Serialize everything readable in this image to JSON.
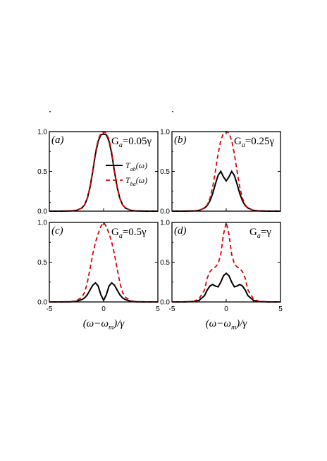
{
  "figure": {
    "xlabel": {
      "pre": "(ω−ω",
      "sub": "m",
      "post": ")/γ"
    },
    "legend": [
      {
        "pre": "T",
        "sub": "ab",
        "post": "(ω)",
        "style": "solid",
        "color": "#000000"
      },
      {
        "pre": "T",
        "sub": "ba",
        "post": "(ω)",
        "style": "dashed",
        "color": "#e00000"
      }
    ]
  },
  "chart_data": [
    {
      "type": "line",
      "panel_label": "(a)",
      "param": {
        "pre": "G",
        "sub": "a",
        "post": "=0.05γ"
      },
      "xlim": [
        -5,
        5
      ],
      "ylim": [
        0,
        1
      ],
      "xticks": [
        "-5",
        "0",
        "5"
      ],
      "yticks": [
        "0.0",
        "0.5",
        "1.0"
      ],
      "series": [
        {
          "name": "T_ab(ω)",
          "x": [
            -5,
            -4,
            -3,
            -2.5,
            -2,
            -1.75,
            -1.5,
            -1.25,
            -1,
            -0.75,
            -0.5,
            -0.25,
            0,
            0.25,
            0.5,
            0.75,
            1,
            1.25,
            1.5,
            1.75,
            2,
            2.5,
            3,
            4,
            5
          ],
          "y": [
            0,
            0,
            0.003,
            0.01,
            0.04,
            0.08,
            0.16,
            0.3,
            0.5,
            0.72,
            0.88,
            0.96,
            0.97,
            0.96,
            0.88,
            0.72,
            0.5,
            0.3,
            0.16,
            0.08,
            0.04,
            0.01,
            0.003,
            0,
            0
          ]
        },
        {
          "name": "T_ba(ω)",
          "x": [
            -5,
            -4,
            -3,
            -2.5,
            -2,
            -1.75,
            -1.5,
            -1.25,
            -1,
            -0.75,
            -0.5,
            -0.25,
            0,
            0.25,
            0.5,
            0.75,
            1,
            1.25,
            1.5,
            1.75,
            2,
            2.5,
            3,
            4,
            5
          ],
          "y": [
            0,
            0,
            0.003,
            0.01,
            0.04,
            0.08,
            0.16,
            0.31,
            0.51,
            0.74,
            0.9,
            0.98,
            1.0,
            0.98,
            0.9,
            0.74,
            0.51,
            0.31,
            0.16,
            0.08,
            0.04,
            0.01,
            0.003,
            0,
            0
          ]
        }
      ]
    },
    {
      "type": "line",
      "panel_label": "(b)",
      "param": {
        "pre": "G",
        "sub": "a",
        "post": "=0.25γ"
      },
      "xlim": [
        -5,
        5
      ],
      "ylim": [
        0,
        1
      ],
      "xticks": [
        "-5",
        "0",
        "5"
      ],
      "yticks": [
        "0.0",
        "0.5",
        "1.0"
      ],
      "series": [
        {
          "name": "T_ab(ω)",
          "x": [
            -5,
            -4,
            -3,
            -2.5,
            -2,
            -1.75,
            -1.5,
            -1.25,
            -1,
            -0.75,
            -0.5,
            -0.25,
            0,
            0.25,
            0.5,
            0.75,
            1,
            1.25,
            1.5,
            1.75,
            2,
            2.5,
            3,
            4,
            5
          ],
          "y": [
            0,
            0,
            0.003,
            0.01,
            0.04,
            0.07,
            0.13,
            0.22,
            0.34,
            0.45,
            0.5,
            0.43,
            0.38,
            0.43,
            0.5,
            0.45,
            0.34,
            0.22,
            0.13,
            0.07,
            0.04,
            0.01,
            0.003,
            0,
            0
          ]
        },
        {
          "name": "T_ba(ω)",
          "x": [
            -5,
            -4,
            -3,
            -2.5,
            -2,
            -1.75,
            -1.5,
            -1.25,
            -1,
            -0.75,
            -0.5,
            -0.25,
            0,
            0.25,
            0.5,
            0.75,
            1,
            1.25,
            1.5,
            1.75,
            2,
            2.5,
            3,
            4,
            5
          ],
          "y": [
            0,
            0,
            0.003,
            0.01,
            0.04,
            0.08,
            0.16,
            0.3,
            0.5,
            0.72,
            0.89,
            0.98,
            1.0,
            0.98,
            0.89,
            0.72,
            0.5,
            0.3,
            0.16,
            0.08,
            0.04,
            0.01,
            0.003,
            0,
            0
          ]
        }
      ]
    },
    {
      "type": "line",
      "panel_label": "(c)",
      "param": {
        "pre": "G",
        "sub": "a",
        "post": "=0.5γ"
      },
      "xlim": [
        -5,
        5
      ],
      "ylim": [
        0,
        1
      ],
      "xticks": [
        "-5",
        "0",
        "5"
      ],
      "yticks": [
        "0.0",
        "0.5",
        "1.0"
      ],
      "series": [
        {
          "name": "T_ab(ω)",
          "x": [
            -5,
            -4,
            -3,
            -2.5,
            -2,
            -1.75,
            -1.5,
            -1.25,
            -1,
            -0.75,
            -0.5,
            -0.25,
            0,
            0.25,
            0.5,
            0.75,
            1,
            1.25,
            1.5,
            1.75,
            2,
            2.5,
            3,
            4,
            5
          ],
          "y": [
            0,
            0,
            0.002,
            0.008,
            0.03,
            0.05,
            0.09,
            0.15,
            0.21,
            0.24,
            0.2,
            0.09,
            0.02,
            0.09,
            0.2,
            0.24,
            0.21,
            0.15,
            0.09,
            0.05,
            0.03,
            0.008,
            0.002,
            0,
            0
          ]
        },
        {
          "name": "T_ba(ω)",
          "x": [
            -5,
            -4,
            -3,
            -2.5,
            -2,
            -1.75,
            -1.5,
            -1.25,
            -1,
            -0.75,
            -0.5,
            -0.25,
            0,
            0.25,
            0.5,
            0.75,
            1,
            1.25,
            1.5,
            1.75,
            2,
            2.5,
            3,
            4,
            5
          ],
          "y": [
            0,
            0,
            0.004,
            0.015,
            0.06,
            0.12,
            0.24,
            0.42,
            0.6,
            0.75,
            0.86,
            0.95,
            1.0,
            0.95,
            0.86,
            0.75,
            0.6,
            0.42,
            0.24,
            0.12,
            0.06,
            0.015,
            0.004,
            0,
            0
          ]
        }
      ]
    },
    {
      "type": "line",
      "panel_label": "(d)",
      "param": {
        "pre": "G",
        "sub": "a",
        "post": "=γ"
      },
      "xlim": [
        -5,
        5
      ],
      "ylim": [
        0,
        1
      ],
      "xticks": [
        "-5",
        "0",
        "5"
      ],
      "yticks": [
        "0.0",
        "0.5",
        "1.0"
      ],
      "series": [
        {
          "name": "T_ab(ω)",
          "x": [
            -5,
            -4,
            -3,
            -2.5,
            -2,
            -1.75,
            -1.5,
            -1.25,
            -1,
            -0.75,
            -0.5,
            -0.25,
            0,
            0.25,
            0.5,
            0.75,
            1,
            1.25,
            1.5,
            1.75,
            2,
            2.5,
            3,
            4,
            5
          ],
          "y": [
            0,
            0,
            0.005,
            0.02,
            0.08,
            0.15,
            0.2,
            0.22,
            0.2,
            0.19,
            0.25,
            0.33,
            0.36,
            0.33,
            0.25,
            0.19,
            0.2,
            0.22,
            0.2,
            0.15,
            0.08,
            0.02,
            0.005,
            0,
            0
          ]
        },
        {
          "name": "T_ba(ω)",
          "x": [
            -5,
            -4,
            -3,
            -2.5,
            -2,
            -1.75,
            -1.5,
            -1.25,
            -1,
            -0.75,
            -0.5,
            -0.25,
            0,
            0.25,
            0.5,
            0.75,
            1,
            1.25,
            1.5,
            1.75,
            2,
            2.5,
            3,
            4,
            5
          ],
          "y": [
            0,
            0,
            0.008,
            0.04,
            0.15,
            0.3,
            0.38,
            0.42,
            0.44,
            0.48,
            0.6,
            0.85,
            1.0,
            0.85,
            0.6,
            0.48,
            0.44,
            0.42,
            0.38,
            0.3,
            0.15,
            0.04,
            0.008,
            0,
            0
          ]
        }
      ]
    }
  ]
}
